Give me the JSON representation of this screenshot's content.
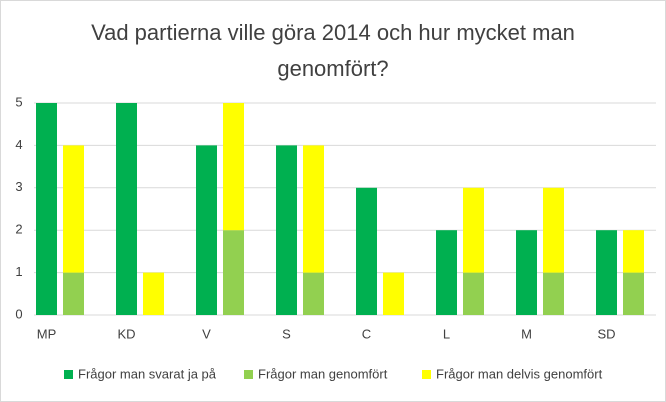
{
  "chart_data": {
    "type": "bar",
    "title": "Vad partierna ville göra 2014 och hur mycket man genomfört?",
    "categories": [
      "MP",
      "KD",
      "V",
      "S",
      "C",
      "L",
      "M",
      "SD"
    ],
    "series": [
      {
        "name": "Frågor man svarat ja på",
        "color": "#00b050",
        "stack": 0,
        "values": [
          5,
          5,
          4,
          4,
          3,
          2,
          2,
          2
        ]
      },
      {
        "name": "Frågor man genomfört",
        "color": "#92d050",
        "stack": 1,
        "values": [
          1,
          0,
          2,
          1,
          0,
          1,
          1,
          1
        ]
      },
      {
        "name": "Frågor man delvis genomfört",
        "color": "#ffff00",
        "stack": 1,
        "values": [
          3,
          1,
          3,
          3,
          1,
          2,
          2,
          1
        ]
      }
    ],
    "ylim": [
      0,
      5
    ],
    "yticks": [
      0,
      1,
      2,
      3,
      4,
      5
    ],
    "grid": true,
    "legend": "bottom"
  }
}
